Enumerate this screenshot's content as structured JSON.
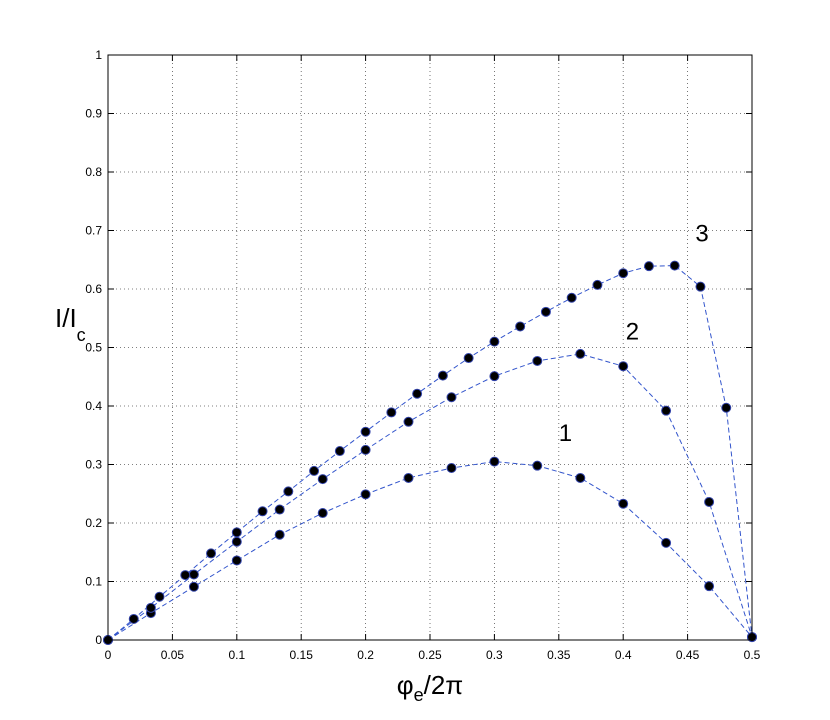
{
  "chart_data": {
    "type": "scatter",
    "title": "",
    "xlabel": {
      "base": "φ",
      "sub": "e",
      "rest": "/2π"
    },
    "ylabel": {
      "base": "I/I",
      "sub": "c"
    },
    "xlim": [
      0,
      0.5
    ],
    "ylim": [
      0,
      1
    ],
    "xticks": [
      "0",
      "0.05",
      "0.1",
      "0.15",
      "0.2",
      "0.25",
      "0.3",
      "0.35",
      "0.4",
      "0.45",
      "0.5"
    ],
    "yticks": [
      "0",
      "0.1",
      "0.2",
      "0.3",
      "0.4",
      "0.5",
      "0.6",
      "0.7",
      "0.8",
      "0.9",
      "1"
    ],
    "grid": true,
    "line_style": "dashed",
    "line_color": "#3355cc",
    "marker_fill": "#000000",
    "marker_edge": "#3344aa",
    "series": [
      {
        "label": "1",
        "label_pos": [
          0.35,
          0.34
        ],
        "points": [
          [
            0,
            0
          ],
          [
            0.0333,
            0.046
          ],
          [
            0.0667,
            0.091
          ],
          [
            0.1,
            0.136
          ],
          [
            0.1333,
            0.18
          ],
          [
            0.1667,
            0.217
          ],
          [
            0.2,
            0.249
          ],
          [
            0.2333,
            0.277
          ],
          [
            0.2667,
            0.294
          ],
          [
            0.3,
            0.305
          ],
          [
            0.3333,
            0.298
          ],
          [
            0.3667,
            0.277
          ],
          [
            0.4,
            0.233
          ],
          [
            0.4333,
            0.166
          ],
          [
            0.4667,
            0.092
          ],
          [
            0.5,
            0.005
          ]
        ]
      },
      {
        "label": "2",
        "label_pos": [
          0.402,
          0.514
        ],
        "points": [
          [
            0,
            0
          ],
          [
            0.0333,
            0.055
          ],
          [
            0.0667,
            0.112
          ],
          [
            0.1,
            0.168
          ],
          [
            0.1333,
            0.223
          ],
          [
            0.1667,
            0.275
          ],
          [
            0.2,
            0.325
          ],
          [
            0.2333,
            0.373
          ],
          [
            0.2667,
            0.415
          ],
          [
            0.3,
            0.451
          ],
          [
            0.3333,
            0.477
          ],
          [
            0.3667,
            0.489
          ],
          [
            0.4,
            0.468
          ],
          [
            0.4333,
            0.392
          ],
          [
            0.4667,
            0.236
          ],
          [
            0.5,
            0.005
          ]
        ]
      },
      {
        "label": "3",
        "label_pos": [
          0.456,
          0.681
        ],
        "points": [
          [
            0,
            0
          ],
          [
            0.02,
            0.036
          ],
          [
            0.04,
            0.074
          ],
          [
            0.06,
            0.111
          ],
          [
            0.08,
            0.148
          ],
          [
            0.1,
            0.184
          ],
          [
            0.12,
            0.22
          ],
          [
            0.14,
            0.254
          ],
          [
            0.16,
            0.289
          ],
          [
            0.18,
            0.323
          ],
          [
            0.2,
            0.356
          ],
          [
            0.22,
            0.389
          ],
          [
            0.24,
            0.421
          ],
          [
            0.26,
            0.452
          ],
          [
            0.28,
            0.482
          ],
          [
            0.3,
            0.51
          ],
          [
            0.32,
            0.536
          ],
          [
            0.34,
            0.561
          ],
          [
            0.36,
            0.585
          ],
          [
            0.38,
            0.607
          ],
          [
            0.4,
            0.627
          ],
          [
            0.42,
            0.639
          ],
          [
            0.44,
            0.64
          ],
          [
            0.46,
            0.604
          ],
          [
            0.48,
            0.397
          ],
          [
            0.5,
            0.005
          ]
        ]
      }
    ]
  }
}
